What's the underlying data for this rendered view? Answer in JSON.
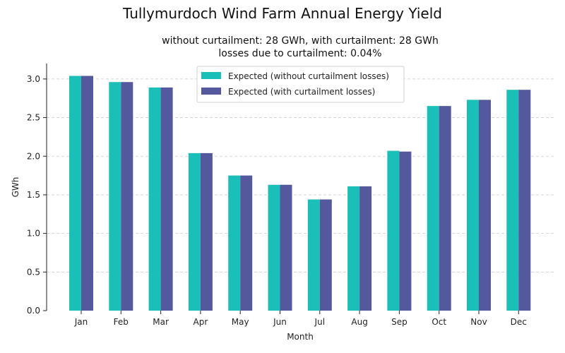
{
  "chart_data": {
    "type": "bar",
    "title": "Tullymurdoch Wind Farm Annual Energy Yield",
    "subtitle_lines": [
      "without curtailment: 28 GWh, with curtailment: 28 GWh",
      "losses due to curtailment: 0.04%"
    ],
    "xlabel": "Month",
    "ylabel": "GWh",
    "categories": [
      "Jan",
      "Feb",
      "Mar",
      "Apr",
      "May",
      "Jun",
      "Jul",
      "Aug",
      "Sep",
      "Oct",
      "Nov",
      "Dec"
    ],
    "series": [
      {
        "name": "Expected (without curtailment losses)",
        "color": "#1abfb8",
        "values": [
          3.04,
          2.96,
          2.89,
          2.04,
          1.75,
          1.63,
          1.44,
          1.61,
          2.07,
          2.65,
          2.73,
          2.86
        ]
      },
      {
        "name": "Expected (with curtailment losses)",
        "color": "#54599e",
        "values": [
          3.04,
          2.96,
          2.89,
          2.04,
          1.75,
          1.63,
          1.44,
          1.61,
          2.06,
          2.65,
          2.73,
          2.86
        ]
      }
    ],
    "ylim": [
      0,
      3.2
    ],
    "yticks": [
      "0.0",
      "0.5",
      "1.0",
      "1.5",
      "2.0",
      "2.5",
      "3.0"
    ],
    "grid": "horizontal dashed",
    "legend_position": "top-center"
  }
}
